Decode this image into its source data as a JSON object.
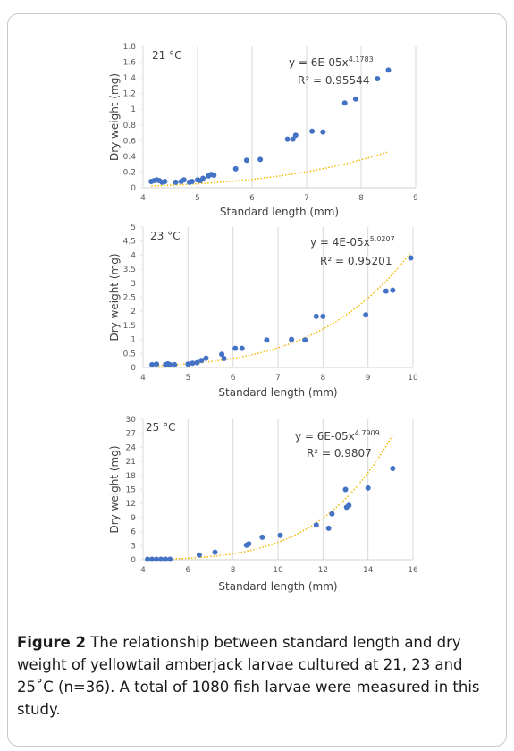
{
  "chart_data": [
    {
      "type": "scatter",
      "annotation": "21 °C",
      "equation": "y = 6E-05x",
      "exponent": "4.1783",
      "r2": "R² = 0.95544",
      "trend_coefficient": 6e-05,
      "trend_exponent": 4.1783,
      "trend_color": "#f5b800",
      "x_label": "Standard length (mm)",
      "y_label": "Dry weight (mg)",
      "color": "#4472c4",
      "grid": true,
      "xlim": [
        4,
        9
      ],
      "xticks": [
        4,
        5,
        6,
        7,
        8,
        9
      ],
      "ylim": [
        0,
        1.8
      ],
      "yticks": [
        0,
        0.2,
        0.4,
        0.6,
        0.8,
        1,
        1.2,
        1.4,
        1.6,
        1.8
      ],
      "x": [
        4.15,
        4.2,
        4.25,
        4.3,
        4.35,
        4.4,
        4.6,
        4.7,
        4.75,
        4.85,
        4.9,
        5.0,
        5.05,
        5.1,
        5.2,
        5.25,
        5.3,
        5.7,
        5.9,
        6.15,
        6.65,
        6.75,
        6.8,
        7.1,
        7.3,
        7.7,
        7.9,
        8.3,
        8.5
      ],
      "values": [
        0.08,
        0.09,
        0.1,
        0.09,
        0.07,
        0.08,
        0.07,
        0.08,
        0.1,
        0.07,
        0.08,
        0.1,
        0.09,
        0.12,
        0.15,
        0.17,
        0.16,
        0.24,
        0.35,
        0.36,
        0.62,
        0.62,
        0.67,
        0.72,
        0.71,
        1.08,
        1.13,
        1.39,
        1.5
      ]
    },
    {
      "type": "scatter",
      "annotation": "23 °C",
      "equation": "y = 4E-05x",
      "exponent": "5.0207",
      "r2": "R² = 0.95201",
      "trend_coefficient": 4e-05,
      "trend_exponent": 5.0207,
      "trend_color": "#f5b800",
      "x_label": "Standard length (mm)",
      "y_label": "Dry weight (mg)",
      "color": "#4472c4",
      "grid": true,
      "xlim": [
        4,
        10
      ],
      "xticks": [
        4,
        5,
        6,
        7,
        8,
        9,
        10
      ],
      "ylim": [
        0,
        5
      ],
      "yticks": [
        0,
        0.5,
        1,
        1.5,
        2,
        2.5,
        3,
        3.5,
        4,
        4.5,
        5
      ],
      "x": [
        4.2,
        4.3,
        4.5,
        4.55,
        4.6,
        4.7,
        5.0,
        5.1,
        5.2,
        5.3,
        5.4,
        5.75,
        5.8,
        6.05,
        6.2,
        6.75,
        7.3,
        7.6,
        7.85,
        8.0,
        8.95,
        9.4,
        9.55,
        9.95
      ],
      "values": [
        0.1,
        0.12,
        0.1,
        0.13,
        0.1,
        0.1,
        0.12,
        0.15,
        0.17,
        0.25,
        0.33,
        0.47,
        0.32,
        0.68,
        0.68,
        0.98,
        1.0,
        0.98,
        1.82,
        1.82,
        1.87,
        2.72,
        2.75,
        3.9
      ]
    },
    {
      "type": "scatter",
      "annotation": "25 °C",
      "equation": "y = 6E-05x",
      "exponent": "4.7909",
      "r2": "R² = 0.9807",
      "trend_coefficient": 6e-05,
      "trend_exponent": 4.7909,
      "trend_color": "#f5b800",
      "x_label": "Standard length (mm)",
      "y_label": "Dry weight (mg)",
      "color": "#4472c4",
      "grid": true,
      "xlim": [
        4,
        16
      ],
      "xticks": [
        4,
        6,
        8,
        10,
        12,
        14,
        16
      ],
      "ylim": [
        0,
        30
      ],
      "yticks": [
        0,
        3,
        6,
        9,
        12,
        15,
        18,
        21,
        24,
        27,
        30
      ],
      "x": [
        4.2,
        4.4,
        4.6,
        4.8,
        5.0,
        5.2,
        6.5,
        7.2,
        8.6,
        8.7,
        9.3,
        10.1,
        11.7,
        12.25,
        12.4,
        13.0,
        13.05,
        13.15,
        14.0,
        15.1
      ],
      "values": [
        0.1,
        0.1,
        0.1,
        0.1,
        0.1,
        0.1,
        1.0,
        1.6,
        3.1,
        3.4,
        4.8,
        5.2,
        7.4,
        6.7,
        9.8,
        15.0,
        11.2,
        11.6,
        15.3,
        19.5
      ]
    }
  ],
  "caption": {
    "label": "Figure 2",
    "lines": [
      "The relationship between standard length and dry",
      "weight of yellowtail amberjack larvae cultured at 21, 23 and",
      "25˚C (n=36). A total of 1080 fish larvae were measured in this",
      "study."
    ]
  }
}
